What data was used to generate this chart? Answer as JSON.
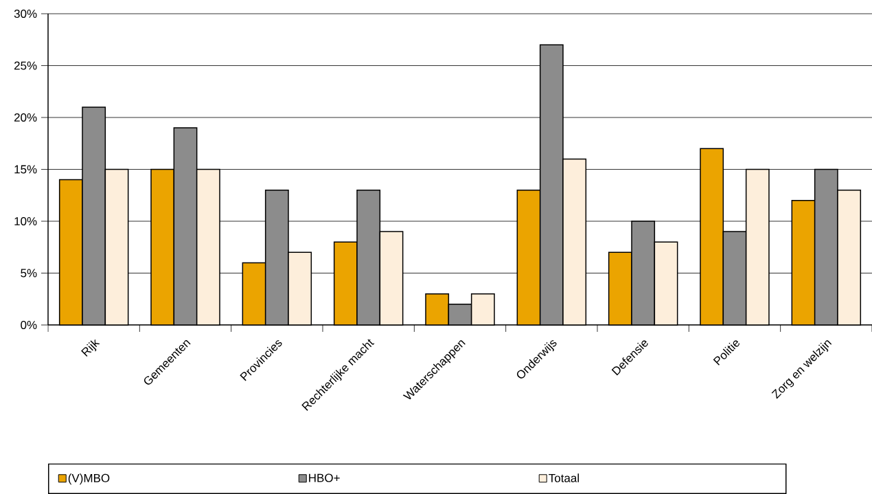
{
  "chart_data": {
    "type": "bar",
    "categories": [
      "Rijk",
      "Gemeenten",
      "Provincies",
      "Rechterlijke macht",
      "Waterschappen",
      "Onderwijs",
      "Defensie",
      "Politie",
      "Zorg en welzijn"
    ],
    "series": [
      {
        "name": "(V)MBO",
        "color": "#eba400",
        "values": [
          14,
          15,
          6,
          8,
          3,
          13,
          7,
          17,
          12
        ]
      },
      {
        "name": "HBO+",
        "color": "#8c8c8c",
        "values": [
          21,
          19,
          13,
          13,
          2,
          27,
          10,
          9,
          15
        ]
      },
      {
        "name": "Totaal",
        "color": "#fdeedb",
        "values": [
          15,
          15,
          7,
          9,
          3,
          16,
          8,
          15,
          13
        ]
      }
    ],
    "ylim": [
      0,
      30
    ],
    "yticks": [
      {
        "value": 0,
        "label": "0%"
      },
      {
        "value": 5,
        "label": "5%"
      },
      {
        "value": 10,
        "label": "10%"
      },
      {
        "value": 15,
        "label": "15%"
      },
      {
        "value": 20,
        "label": "20%"
      },
      {
        "value": 25,
        "label": "25%"
      },
      {
        "value": 30,
        "label": "30%"
      }
    ],
    "grid": "y",
    "legend": "bottom"
  }
}
